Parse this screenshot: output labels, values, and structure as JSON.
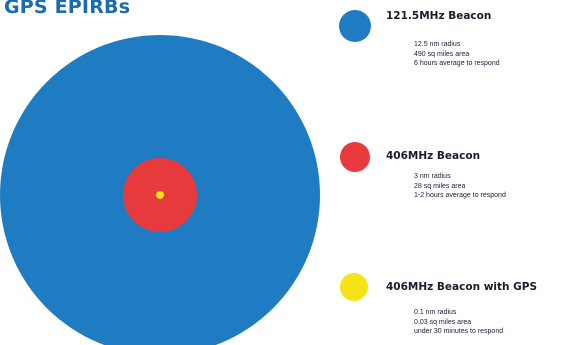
{
  "title": "GPS EPIRBs",
  "colors": {
    "beacon_121": "#1f7bc2",
    "beacon_406": "#e63a3c",
    "beacon_406_gps": "#f6e316",
    "title": "#1a6bb0"
  },
  "beacons": [
    {
      "name": "121.5MHz Beacon",
      "radius_nm": 12.5,
      "lines": [
        "12.5 nm radius",
        "490 sq miles area",
        "6 hours average to respond"
      ]
    },
    {
      "name": "406MHz Beacon",
      "radius_nm": 3,
      "lines": [
        "3 nm radius",
        "28 sq miles area",
        "1-2 hours average to respond"
      ]
    },
    {
      "name": "406MHz Beacon with GPS",
      "radius_nm": 0.1,
      "lines": [
        "0.1 nm radius",
        "0.03 sq miles area",
        "under 30 minutes to respond"
      ]
    }
  ]
}
